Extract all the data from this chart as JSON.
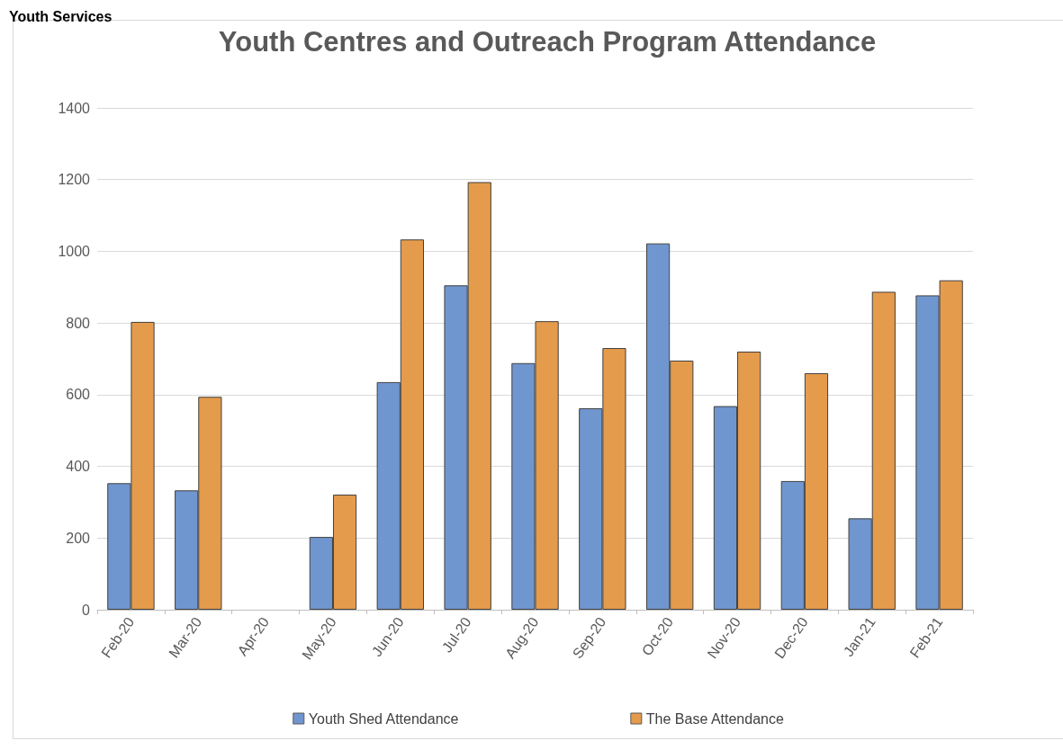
{
  "chart_data": {
    "type": "bar",
    "title": "Youth Centres and Outreach Program Attendance",
    "annotations": [
      "Youth Services"
    ],
    "categories": [
      "Feb-20",
      "Mar-20",
      "Apr-20",
      "May-20",
      "Jun-20",
      "Jul-20",
      "Aug-20",
      "Sep-20",
      "Oct-20",
      "Nov-20",
      "Dec-20",
      "Jan-21",
      "Feb-21"
    ],
    "series": [
      {
        "name": "Youth Shed Attendance",
        "color": "#7096cf",
        "values": [
          353,
          333,
          null,
          203,
          635,
          905,
          688,
          562,
          1022,
          568,
          359,
          255,
          877
        ]
      },
      {
        "name": "The Base Attendance",
        "color": "#e59b4c",
        "values": [
          803,
          594,
          null,
          321,
          1033,
          1193,
          805,
          730,
          695,
          720,
          660,
          887,
          919
        ]
      }
    ],
    "ylim": [
      0,
      1400
    ],
    "yticks": [
      0,
      200,
      400,
      600,
      800,
      1000,
      1200,
      1400
    ],
    "grid": "y",
    "legend": "bottom"
  }
}
